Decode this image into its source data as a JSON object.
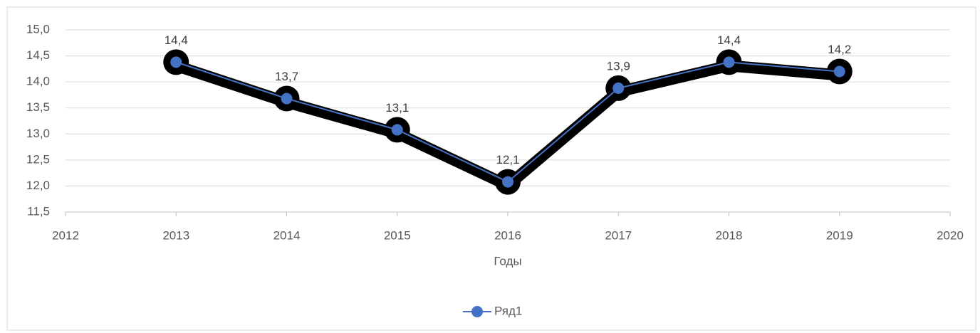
{
  "chart_data": {
    "type": "line",
    "x": [
      2013,
      2014,
      2015,
      2016,
      2017,
      2018,
      2019
    ],
    "series": [
      {
        "name": "Ряд1",
        "color": "#4472c4",
        "values": [
          14.38,
          13.68,
          13.08,
          12.08,
          13.88,
          14.38,
          14.2
        ],
        "value_labels": [
          "14,4",
          "13,7",
          "13,1",
          "12,1",
          "13,9",
          "14,4",
          "14,2"
        ]
      }
    ],
    "xlabel": "Годы",
    "xlim": [
      2012,
      2020
    ],
    "xticks": [
      2012,
      2013,
      2014,
      2015,
      2016,
      2017,
      2018,
      2019,
      2020
    ],
    "ylim": [
      11.5,
      15.0
    ],
    "yticks": [
      {
        "value": 11.5,
        "label": "11,5"
      },
      {
        "value": 12.0,
        "label": "12,0"
      },
      {
        "value": 12.5,
        "label": "12,5"
      },
      {
        "value": 13.0,
        "label": "13,0"
      },
      {
        "value": 13.5,
        "label": "13,5"
      },
      {
        "value": 14.0,
        "label": "14,0"
      },
      {
        "value": 14.5,
        "label": "14,5"
      },
      {
        "value": 15.0,
        "label": "15,0"
      }
    ],
    "grid": true,
    "legend": "bottom"
  }
}
